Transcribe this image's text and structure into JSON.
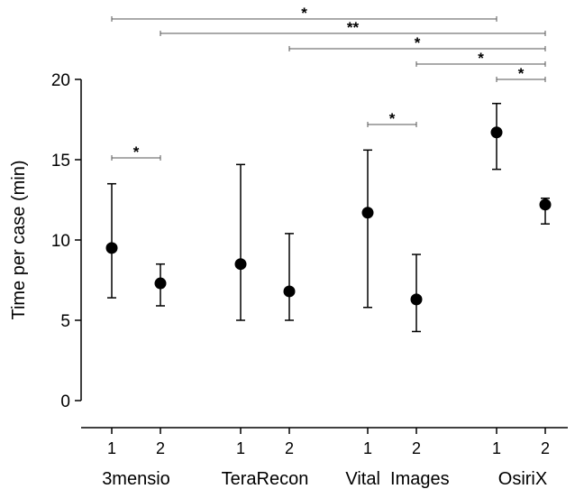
{
  "chart_data": {
    "type": "scatter",
    "title": "",
    "ylabel": "Time per case (min)",
    "xlabel": "",
    "ylim": [
      0,
      20
    ],
    "yticks": [
      0,
      5,
      10,
      15,
      20
    ],
    "grid": false,
    "legend": "none",
    "groups": [
      {
        "name": "3mensio",
        "reads": [
          "1",
          "2"
        ]
      },
      {
        "name": "TeraRecon",
        "reads": [
          "1",
          "2"
        ]
      },
      {
        "name": "Vital  Images",
        "reads": [
          "1",
          "2"
        ]
      },
      {
        "name": "OsiriX",
        "reads": [
          "1",
          "2"
        ]
      }
    ],
    "points": [
      {
        "group": "3mensio",
        "read": "1",
        "median": 9.5,
        "lower": 6.4,
        "upper": 13.5
      },
      {
        "group": "3mensio",
        "read": "2",
        "median": 7.3,
        "lower": 5.9,
        "upper": 8.5
      },
      {
        "group": "TeraRecon",
        "read": "1",
        "median": 8.5,
        "lower": 5.0,
        "upper": 14.7
      },
      {
        "group": "TeraRecon",
        "read": "2",
        "median": 6.8,
        "lower": 5.0,
        "upper": 10.4
      },
      {
        "group": "Vital  Images",
        "read": "1",
        "median": 11.7,
        "lower": 5.8,
        "upper": 15.6
      },
      {
        "group": "Vital  Images",
        "read": "2",
        "median": 6.3,
        "lower": 4.3,
        "upper": 9.1
      },
      {
        "group": "OsiriX",
        "read": "1",
        "median": 16.7,
        "lower": 14.4,
        "upper": 18.5
      },
      {
        "group": "OsiriX",
        "read": "2",
        "median": 12.2,
        "lower": 11.0,
        "upper": 12.6
      }
    ],
    "significance": [
      {
        "from": 0,
        "to": 6,
        "label": "*"
      },
      {
        "from": 1,
        "to": 7,
        "label": "**"
      },
      {
        "from": 3,
        "to": 7,
        "label": "*"
      },
      {
        "from": 5,
        "to": 7,
        "label": "*"
      },
      {
        "from": 6,
        "to": 7,
        "label": "*"
      },
      {
        "from": 4,
        "to": 5,
        "label": "*"
      },
      {
        "from": 0,
        "to": 1,
        "label": "*"
      }
    ]
  }
}
